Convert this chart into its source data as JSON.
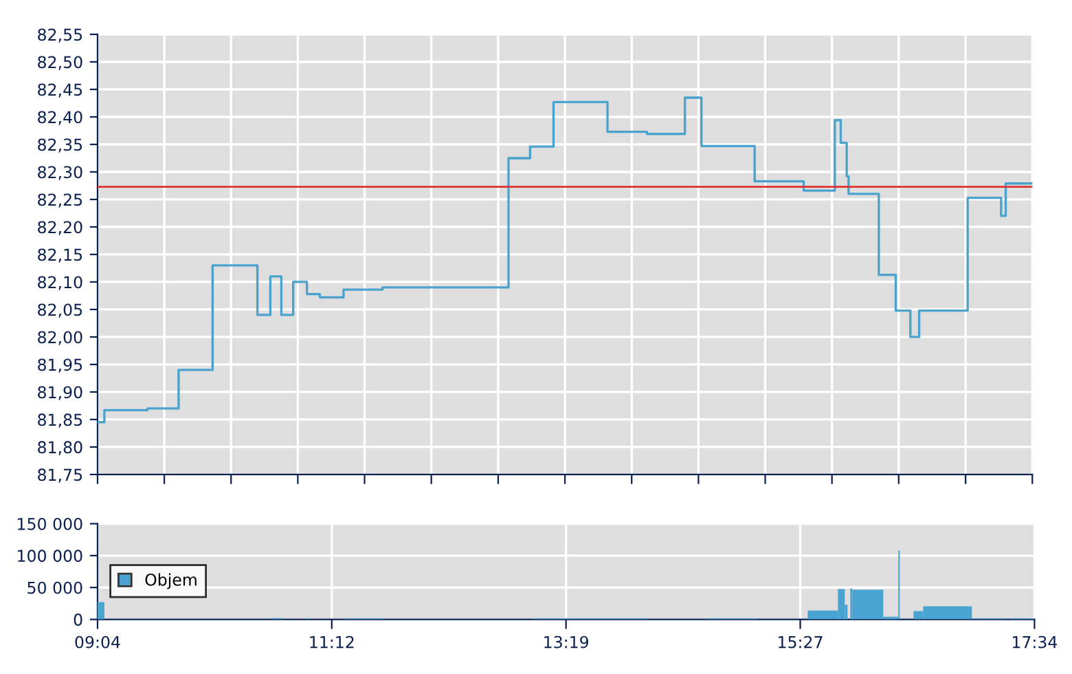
{
  "chart_data": [
    {
      "type": "step",
      "x": [
        9.067,
        9.129,
        9.521,
        9.804,
        10.113,
        10.521,
        10.638,
        10.738,
        10.846,
        10.971,
        11.088,
        11.304,
        11.658,
        12.804,
        13.0,
        13.213,
        13.704,
        14.063,
        14.408,
        14.558,
        15.042,
        15.488,
        15.771,
        15.825,
        15.879,
        15.896,
        16.171,
        16.325,
        16.458,
        16.538,
        16.979,
        17.283,
        17.325,
        17.567
      ],
      "series": [
        {
          "color": "#4aa3cc",
          "values": [
            81.845,
            81.867,
            81.87,
            81.94,
            82.13,
            82.04,
            82.11,
            82.04,
            82.1,
            82.078,
            82.072,
            82.086,
            82.09,
            82.325,
            82.346,
            82.427,
            82.373,
            82.369,
            82.435,
            82.347,
            82.283,
            82.266,
            82.394,
            82.353,
            82.292,
            82.26,
            82.113,
            82.048,
            82.0,
            82.048,
            82.253,
            82.22,
            82.279,
            82.279
          ]
        }
      ],
      "xlim": [
        9.067,
        17.567
      ],
      "xticks": [
        {
          "value": 9.067,
          "label": null
        },
        {
          "value": 9.674,
          "label": null
        },
        {
          "value": 10.281,
          "label": null
        },
        {
          "value": 10.888,
          "label": null
        },
        {
          "value": 11.495,
          "label": null
        },
        {
          "value": 12.102,
          "label": null
        },
        {
          "value": 12.71,
          "label": null
        },
        {
          "value": 13.317,
          "label": null
        },
        {
          "value": 13.924,
          "label": null
        },
        {
          "value": 14.531,
          "label": null
        },
        {
          "value": 15.138,
          "label": null
        },
        {
          "value": 15.745,
          "label": null
        },
        {
          "value": 16.352,
          "label": null
        },
        {
          "value": 16.96,
          "label": null
        },
        {
          "value": 17.567,
          "label": null
        }
      ],
      "ylim": [
        81.75,
        82.55
      ],
      "yticks": [
        {
          "value": 81.75,
          "label": "81,75"
        },
        {
          "value": 81.8,
          "label": "81,80"
        },
        {
          "value": 81.85,
          "label": "81,85"
        },
        {
          "value": 81.9,
          "label": "81,90"
        },
        {
          "value": 81.95,
          "label": "81,95"
        },
        {
          "value": 82.0,
          "label": "82,00"
        },
        {
          "value": 82.05,
          "label": "82,05"
        },
        {
          "value": 82.1,
          "label": "82,10"
        },
        {
          "value": 82.15,
          "label": "82,15"
        },
        {
          "value": 82.2,
          "label": "82,20"
        },
        {
          "value": 82.25,
          "label": "82,25"
        },
        {
          "value": 82.3,
          "label": "82,30"
        },
        {
          "value": 82.35,
          "label": "82,35"
        },
        {
          "value": 82.4,
          "label": "82,40"
        },
        {
          "value": 82.45,
          "label": "82,45"
        },
        {
          "value": 82.5,
          "label": "82,50"
        },
        {
          "value": 82.55,
          "label": "82,55"
        }
      ],
      "ref_lines": [
        {
          "axis": "y",
          "value": 82.273,
          "color": "#e03030"
        }
      ],
      "tick_labels": "y",
      "grid": true,
      "legend": false
    },
    {
      "type": "histogram",
      "bins": [
        9.067,
        9.129,
        10.649,
        10.749,
        10.961,
        10.986,
        11.31,
        11.671,
        13.011,
        14.07,
        14.588,
        15.055,
        15.51,
        15.784,
        15.846,
        15.871,
        15.896,
        15.915,
        16.195,
        16.332,
        16.345,
        16.469,
        16.557,
        16.999,
        17.311,
        17.342,
        17.567
      ],
      "series": [
        {
          "name": "Objem",
          "color": "#4aa3d1",
          "values": [
            27000,
            0,
            2000,
            0,
            2000,
            0,
            1500,
            0,
            1500,
            0,
            1500,
            0,
            14000,
            47500,
            23000,
            0,
            48500,
            46500,
            4300,
            108000,
            0,
            13000,
            20500,
            1500,
            0,
            1500
          ]
        }
      ],
      "xlim": [
        9.067,
        17.567
      ],
      "xticks": [
        {
          "value": 9.067,
          "label": "09:04"
        },
        {
          "value": 11.192,
          "label": "11:12"
        },
        {
          "value": 13.317,
          "label": "13:19"
        },
        {
          "value": 15.442,
          "label": "15:27"
        },
        {
          "value": 17.567,
          "label": "17:34"
        }
      ],
      "ylim": [
        0,
        150000
      ],
      "yticks": [
        {
          "value": 0,
          "label": "0"
        },
        {
          "value": 50000,
          "label": "50 000"
        },
        {
          "value": 100000,
          "label": "100 000"
        },
        {
          "value": 150000,
          "label": "150 000"
        }
      ],
      "grid": true,
      "legend": "left"
    }
  ]
}
